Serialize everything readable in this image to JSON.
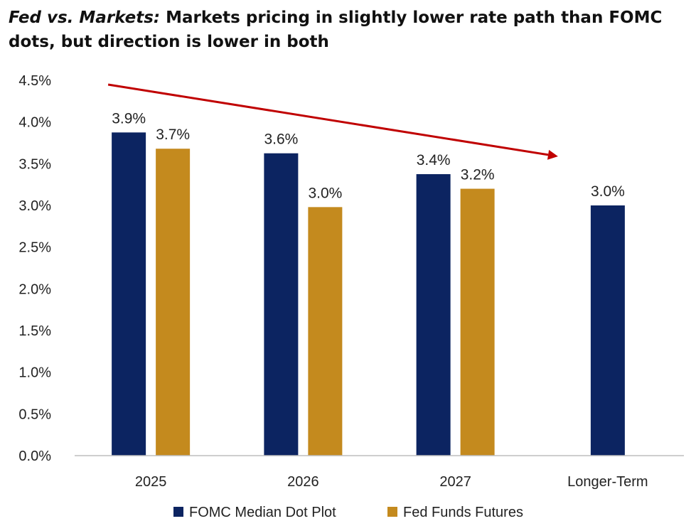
{
  "title": {
    "italic": "Fed vs. Markets:",
    "rest": " Markets pricing in slightly lower rate path than FOMC dots, but direction is lower in both"
  },
  "chart_data": {
    "type": "bar",
    "categories": [
      "2025",
      "2026",
      "2027",
      "Longer-Term"
    ],
    "series": [
      {
        "name": "FOMC Median Dot Plot",
        "color": "#0c2461",
        "values": [
          3.875,
          3.625,
          3.375,
          3.0
        ],
        "labels": [
          "3.9%",
          "3.6%",
          "3.4%",
          "3.0%"
        ]
      },
      {
        "name": "Fed Funds Futures",
        "color": "#c48a1e",
        "values": [
          3.68,
          2.98,
          3.2,
          null
        ],
        "labels": [
          "3.7%",
          "3.0%",
          "3.2%",
          null
        ]
      }
    ],
    "ylim": [
      0,
      4.5
    ],
    "yticks": [
      0,
      0.5,
      1.0,
      1.5,
      2.0,
      2.5,
      3.0,
      3.5,
      4.0,
      4.5
    ],
    "ytick_labels": [
      "0.0%",
      "0.5%",
      "1.0%",
      "1.5%",
      "2.0%",
      "2.5%",
      "3.0%",
      "3.5%",
      "4.0%",
      "4.5%"
    ],
    "grid": false,
    "legend_position": "bottom",
    "annotation": {
      "type": "arrow",
      "color": "#c00000",
      "description": "downward trend arrow"
    }
  }
}
